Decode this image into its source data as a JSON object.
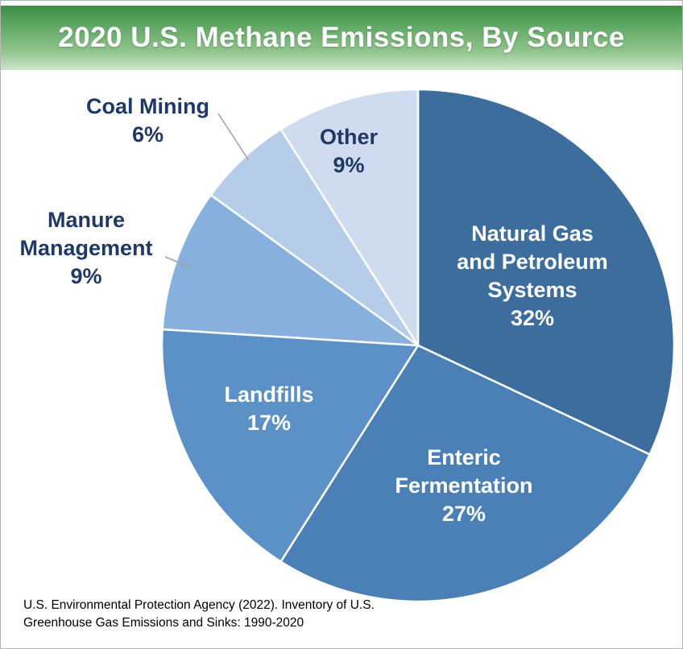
{
  "banner": {
    "title": "2020 U.S. Methane Emissions, By Source"
  },
  "chart_data": {
    "type": "pie",
    "title": "2020 U.S. Methane Emissions, By Source",
    "start_angle_deg": 0,
    "direction": "clockwise",
    "units": "percent",
    "slices": [
      {
        "label": "Natural Gas and Petroleum Systems",
        "value": 32,
        "color": "#3d6d9d",
        "label_color": "#ffffff",
        "label_position": "inside"
      },
      {
        "label": "Enteric Fermentation",
        "value": 27,
        "color": "#4a80b6",
        "label_color": "#ffffff",
        "label_position": "inside"
      },
      {
        "label": "Landfills",
        "value": 17,
        "color": "#5b91c6",
        "label_color": "#ffffff",
        "label_position": "inside"
      },
      {
        "label": "Manure Management",
        "value": 9,
        "color": "#88b0dc",
        "label_color": "#1f3864",
        "label_position": "outside"
      },
      {
        "label": "Coal Mining",
        "value": 6,
        "color": "#b6cdea",
        "label_color": "#1f3864",
        "label_position": "outside"
      },
      {
        "label": "Other",
        "value": 9,
        "color": "#cfdcef",
        "label_color": "#1f3864",
        "label_position": "inside"
      }
    ],
    "labels": {
      "natural_gas": {
        "lines": [
          "Natural Gas",
          "and Petroleum",
          "Systems",
          "32%"
        ]
      },
      "enteric": {
        "lines": [
          "Enteric",
          "Fermentation",
          "27%"
        ]
      },
      "landfills": {
        "lines": [
          "Landfills",
          "17%"
        ]
      },
      "other": {
        "lines": [
          "Other",
          "9%"
        ]
      },
      "coal": {
        "lines": [
          "Coal Mining",
          "6%"
        ]
      },
      "manure": {
        "lines": [
          "Manure",
          "Management",
          "9%"
        ]
      }
    },
    "legend": "none",
    "source": "U.S. Environmental Protection Agency (2022). Inventory of U.S. Greenhouse Gas Emissions and Sinks: 1990-2020"
  },
  "footer": {
    "line1": "U.S. Environmental Protection Agency (2022). Inventory of U.S.",
    "line2": "Greenhouse Gas Emissions and Sinks: 1990-2020"
  },
  "colors": {
    "outer_label_text": "#1f3864",
    "leader_line": "#a0a0a0",
    "banner_green_top": "#3e8c47",
    "banner_green_bottom": "#cfe5cb"
  }
}
